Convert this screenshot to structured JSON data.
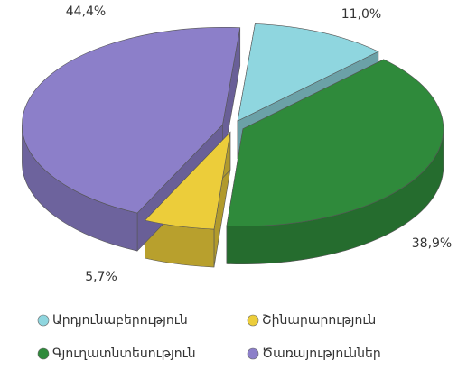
{
  "chart_data": {
    "type": "pie",
    "categories": [
      "Արդյունաբերություն",
      "Գյուղատնտեսություն",
      "Շինարարություն",
      "Ծառայություններ"
    ],
    "values": [
      11.0,
      38.9,
      5.7,
      44.4
    ],
    "value_labels": [
      "11,0%",
      "38,9%",
      "5,7%",
      "44,4%"
    ],
    "colors": [
      "#8fd6df",
      "#2f8a3b",
      "#eccd3a",
      "#8c7fc9"
    ],
    "legend": "bottom"
  }
}
